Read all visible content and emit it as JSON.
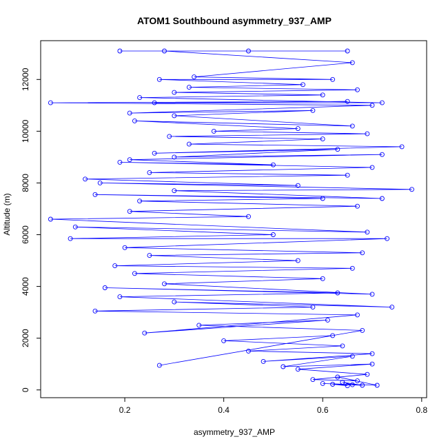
{
  "chart_data": {
    "type": "line",
    "title": "ATOM1 Southbound asymmetry_937_AMP",
    "xlabel": "asymmetry_937_AMP",
    "ylabel": "Altitude (m)",
    "xlim": [
      0.03,
      0.81
    ],
    "ylim": [
      -300,
      13500
    ],
    "x_ticks": [
      0.2,
      0.4,
      0.6,
      0.8
    ],
    "x_tick_labels": [
      "0.2",
      "0.4",
      "0.6",
      "0.8"
    ],
    "y_ticks": [
      0,
      2000,
      4000,
      6000,
      8000,
      10000,
      12000
    ],
    "y_tick_labels": [
      "0",
      "2000",
      "4000",
      "6000",
      "8000",
      "10000",
      "12000"
    ],
    "grid": false,
    "legend": "none",
    "series": [
      {
        "color": "#0000ff",
        "marker": "open-circle",
        "line": true,
        "points": [
          [
            0.65,
            160
          ],
          [
            0.62,
            220
          ],
          [
            0.68,
            180
          ],
          [
            0.64,
            300
          ],
          [
            0.66,
            200
          ],
          [
            0.6,
            250
          ],
          [
            0.71,
            180
          ],
          [
            0.63,
            500
          ],
          [
            0.67,
            350
          ],
          [
            0.58,
            400
          ],
          [
            0.69,
            600
          ],
          [
            0.55,
            800
          ],
          [
            0.7,
            1000
          ],
          [
            0.52,
            900
          ],
          [
            0.66,
            1300
          ],
          [
            0.48,
            1100
          ],
          [
            0.7,
            1400
          ],
          [
            0.45,
            1500
          ],
          [
            0.64,
            1700
          ],
          [
            0.4,
            1900
          ],
          [
            0.62,
            2100
          ],
          [
            0.27,
            950
          ],
          [
            0.68,
            2300
          ],
          [
            0.35,
            2500
          ],
          [
            0.61,
            2700
          ],
          [
            0.24,
            2200
          ],
          [
            0.67,
            2900
          ],
          [
            0.14,
            3050
          ],
          [
            0.58,
            3200
          ],
          [
            0.3,
            3400
          ],
          [
            0.74,
            3200
          ],
          [
            0.19,
            3600
          ],
          [
            0.63,
            3750
          ],
          [
            0.16,
            3950
          ],
          [
            0.7,
            3700
          ],
          [
            0.28,
            4100
          ],
          [
            0.6,
            4300
          ],
          [
            0.22,
            4500
          ],
          [
            0.66,
            4700
          ],
          [
            0.18,
            4800
          ],
          [
            0.55,
            5000
          ],
          [
            0.25,
            5200
          ],
          [
            0.68,
            5300
          ],
          [
            0.2,
            5500
          ],
          [
            0.73,
            5850
          ],
          [
            0.09,
            5850
          ],
          [
            0.5,
            6000
          ],
          [
            0.1,
            6300
          ],
          [
            0.69,
            6100
          ],
          [
            0.05,
            6600
          ],
          [
            0.45,
            6700
          ],
          [
            0.21,
            6900
          ],
          [
            0.67,
            7100
          ],
          [
            0.23,
            7300
          ],
          [
            0.6,
            7400
          ],
          [
            0.14,
            7550
          ],
          [
            0.72,
            7400
          ],
          [
            0.3,
            7700
          ],
          [
            0.78,
            7750
          ],
          [
            0.15,
            8000
          ],
          [
            0.55,
            7900
          ],
          [
            0.12,
            8150
          ],
          [
            0.65,
            8300
          ],
          [
            0.25,
            8400
          ],
          [
            0.7,
            8600
          ],
          [
            0.19,
            8800
          ],
          [
            0.5,
            8700
          ],
          [
            0.21,
            8900
          ],
          [
            0.72,
            9100
          ],
          [
            0.3,
            9000
          ],
          [
            0.63,
            9300
          ],
          [
            0.26,
            9150
          ],
          [
            0.76,
            9400
          ],
          [
            0.33,
            9500
          ],
          [
            0.6,
            9700
          ],
          [
            0.29,
            9800
          ],
          [
            0.69,
            9900
          ],
          [
            0.38,
            10000
          ],
          [
            0.55,
            10100
          ],
          [
            0.22,
            10400
          ],
          [
            0.66,
            10200
          ],
          [
            0.3,
            10600
          ],
          [
            0.58,
            10800
          ],
          [
            0.21,
            10700
          ],
          [
            0.7,
            11000
          ],
          [
            0.05,
            11100
          ],
          [
            0.65,
            11150
          ],
          [
            0.26,
            11100
          ],
          [
            0.72,
            11100
          ],
          [
            0.23,
            11300
          ],
          [
            0.6,
            11400
          ],
          [
            0.3,
            11500
          ],
          [
            0.67,
            11600
          ],
          [
            0.33,
            11700
          ],
          [
            0.56,
            11800
          ],
          [
            0.27,
            12000
          ],
          [
            0.62,
            12000
          ],
          [
            0.34,
            12100
          ],
          [
            0.66,
            12650
          ],
          [
            0.28,
            13100
          ],
          [
            0.45,
            13100
          ],
          [
            0.19,
            13100
          ],
          [
            0.65,
            13100
          ]
        ]
      }
    ]
  }
}
